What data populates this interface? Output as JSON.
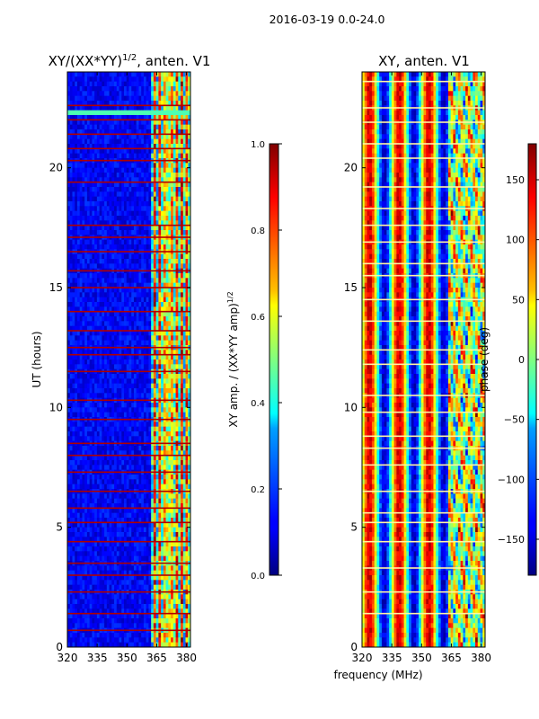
{
  "figure": {
    "suptitle": "2016-03-19 0.0-24.0"
  },
  "shared": {
    "xlabel": "frequency (MHz)"
  },
  "chart_data": [
    {
      "type": "heatmap",
      "title_main": "XY/(XX*YY)",
      "title_exp": "1/2",
      "title_tail": ", anten. V1",
      "xlabel": "",
      "ylabel": "UT (hours)",
      "xlim": [
        320,
        382
      ],
      "ylim": [
        0,
        24
      ],
      "xticks": [
        320,
        335,
        350,
        365,
        380
      ],
      "yticks": [
        0,
        5,
        10,
        15,
        20
      ],
      "colormap": "jet",
      "colorbar": {
        "label_main": "XY amp. / (XX*YY amp)",
        "label_exp": "1/2",
        "range": [
          0.0,
          1.0
        ],
        "ticks": [
          "0.0",
          "0.2",
          "0.4",
          "0.6",
          "0.8",
          "1.0"
        ]
      },
      "flagged_hours": [
        0.7,
        1.4,
        2.3,
        3.0,
        3.5,
        4.4,
        5.2,
        5.8,
        6.5,
        7.3,
        8.0,
        8.5,
        9.5,
        10.3,
        11.5,
        12.2,
        12.5,
        13.2,
        14.0,
        15.0,
        15.7,
        16.5,
        17.1,
        17.6,
        19.4,
        20.3,
        20.8,
        21.4,
        22.0,
        22.6
      ]
    },
    {
      "type": "heatmap",
      "title": "XY, anten. V1",
      "xlabel": "",
      "ylabel": "",
      "xlim": [
        320,
        382
      ],
      "ylim": [
        0,
        24
      ],
      "xticks": [
        320,
        335,
        350,
        365,
        380
      ],
      "yticks": [
        0,
        5,
        10,
        15,
        20
      ],
      "colormap": "jet",
      "colorbar": {
        "label": "phase (deg)",
        "range": [
          -180,
          180
        ],
        "ticks": [
          "150",
          "100",
          "50",
          "0",
          "−50",
          "−100",
          "−150"
        ]
      },
      "flagged_hours": [
        1.4,
        2.3,
        3.3,
        4.4,
        5.2,
        5.6,
        6.5,
        7.6,
        8.3,
        8.8,
        9.8,
        10.5,
        11.8,
        12.4,
        13.6,
        14.5,
        15.5,
        16.0,
        16.9,
        17.6,
        18.3,
        19.2,
        20.4,
        21.0,
        21.9,
        22.5,
        23.6
      ]
    }
  ]
}
